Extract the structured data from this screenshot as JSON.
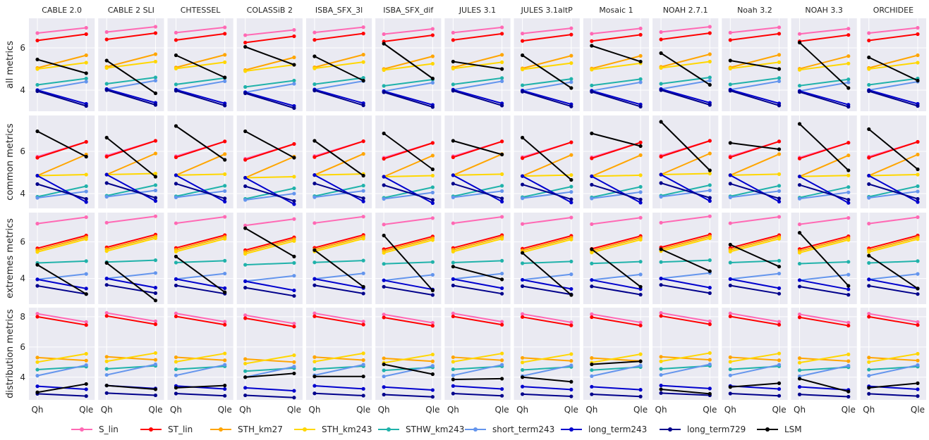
{
  "chart_data": {
    "type": "line",
    "layout": "small-multiples grid, shared y per row",
    "x": [
      "Qh",
      "Qle"
    ],
    "columns": [
      "CABLE 2.0",
      "CABLE 2 SLI",
      "CHTESSEL",
      "COLASSiB 2",
      "ISBA_SFX_3l",
      "ISBA_SFX_dif",
      "JULES 3.1",
      "JULES 3.1altP",
      "Mosaic 1",
      "NOAH 2.7.1",
      "Noah 3.2",
      "NOAH 3.3",
      "ORCHIDEE"
    ],
    "rows": [
      {
        "label": "all metrics",
        "ylim": [
          3.0,
          7.4
        ],
        "yticks": [
          4,
          6
        ]
      },
      {
        "label": "common metrics",
        "ylim": [
          3.3,
          7.7
        ],
        "yticks": [
          4,
          6
        ]
      },
      {
        "label": "extremes metrics",
        "ylim": [
          2.6,
          7.6
        ],
        "yticks": [
          4,
          6
        ]
      },
      {
        "label": "distribution metrics",
        "ylim": [
          2.5,
          8.6
        ],
        "yticks": [
          4,
          6,
          8
        ]
      }
    ],
    "grid": true,
    "legend_position": "bottom",
    "series": [
      {
        "name": "S_lin",
        "color": "#ff69b4",
        "benchmark": [
          [
            6.7,
            6.95
          ],
          [
            5.75,
            6.45
          ],
          [
            7.0,
            7.35
          ],
          [
            8.2,
            7.65
          ]
        ]
      },
      {
        "name": "ST_lin",
        "color": "#ff0000",
        "benchmark": [
          [
            6.35,
            6.65
          ],
          [
            5.7,
            6.45
          ],
          [
            5.65,
            6.35
          ],
          [
            8.0,
            7.45
          ]
        ]
      },
      {
        "name": "STH_km27",
        "color": "#ffa500",
        "benchmark": [
          [
            5.05,
            5.65
          ],
          [
            4.85,
            5.85
          ],
          [
            5.55,
            6.25
          ],
          [
            5.3,
            5.1
          ]
        ]
      },
      {
        "name": "STH_km243",
        "color": "#ffd700",
        "benchmark": [
          [
            5.0,
            5.3
          ],
          [
            4.85,
            4.9
          ],
          [
            5.45,
            6.15
          ],
          [
            5.0,
            5.55
          ]
        ]
      },
      {
        "name": "STHW_km243",
        "color": "#20b2aa",
        "benchmark": [
          [
            4.25,
            4.55
          ],
          [
            3.85,
            4.35
          ],
          [
            4.85,
            4.95
          ],
          [
            4.5,
            4.7
          ]
        ]
      },
      {
        "name": "short_term243",
        "color": "#6495ed",
        "benchmark": [
          [
            4.0,
            4.4
          ],
          [
            3.8,
            4.1
          ],
          [
            3.95,
            4.25
          ],
          [
            4.1,
            4.8
          ]
        ]
      },
      {
        "name": "long_term243",
        "color": "#0000cd",
        "benchmark": [
          [
            4.0,
            3.35
          ],
          [
            4.85,
            3.6
          ],
          [
            3.95,
            3.45
          ],
          [
            3.4,
            3.2
          ]
        ]
      },
      {
        "name": "long_term729",
        "color": "#00008b",
        "benchmark": [
          [
            3.95,
            3.25
          ],
          [
            4.45,
            3.75
          ],
          [
            3.6,
            3.15
          ],
          [
            2.9,
            2.75
          ]
        ]
      }
    ],
    "LSM": {
      "name": "LSM",
      "color": "#000000",
      "values": [
        [
          [
            5.45,
            4.8
          ],
          [
            6.95,
            5.75
          ],
          [
            4.75,
            3.15
          ],
          [
            3.0,
            3.55
          ]
        ],
        [
          [
            5.4,
            3.85
          ],
          [
            6.65,
            4.8
          ],
          [
            4.85,
            2.8
          ],
          [
            3.45,
            3.2
          ]
        ],
        [
          [
            5.65,
            4.6
          ],
          [
            7.2,
            5.6
          ],
          [
            5.2,
            3.25
          ],
          [
            3.3,
            3.45
          ]
        ],
        [
          [
            6.05,
            5.2
          ],
          [
            6.95,
            5.7
          ],
          [
            6.75,
            5.2
          ],
          [
            4.0,
            4.25
          ]
        ],
        [
          [
            5.6,
            4.45
          ],
          [
            6.5,
            4.85
          ],
          [
            5.55,
            3.55
          ],
          [
            4.05,
            4.05
          ]
        ],
        [
          [
            6.2,
            4.55
          ],
          [
            6.85,
            5.15
          ],
          [
            6.35,
            3.35
          ],
          [
            4.85,
            4.2
          ]
        ],
        [
          [
            5.35,
            5.0
          ],
          [
            6.5,
            5.85
          ],
          [
            4.65,
            3.95
          ],
          [
            3.85,
            3.9
          ]
        ],
        [
          [
            5.65,
            4.1
          ],
          [
            6.65,
            4.65
          ],
          [
            5.4,
            3.1
          ],
          [
            4.0,
            3.7
          ]
        ],
        [
          [
            6.1,
            5.35
          ],
          [
            6.85,
            6.25
          ],
          [
            5.6,
            3.55
          ],
          [
            4.85,
            5.05
          ]
        ],
        [
          [
            5.75,
            4.25
          ],
          [
            7.4,
            5.1
          ],
          [
            5.6,
            4.4
          ],
          [
            3.2,
            2.9
          ]
        ],
        [
          [
            5.4,
            5.0
          ],
          [
            6.4,
            6.1
          ],
          [
            5.85,
            4.65
          ],
          [
            3.35,
            3.6
          ]
        ],
        [
          [
            6.25,
            4.1
          ],
          [
            7.3,
            5.1
          ],
          [
            6.5,
            3.6
          ],
          [
            3.9,
            3.05
          ]
        ],
        [
          [
            5.55,
            4.45
          ],
          [
            7.05,
            5.15
          ],
          [
            5.25,
            3.45
          ],
          [
            3.3,
            3.6
          ]
        ]
      ]
    },
    "column_offsets": [
      0,
      0.05,
      0.02,
      -0.1,
      0.03,
      -0.05,
      0.02,
      -0.02,
      -0.03,
      0.05,
      0.02,
      -0.04,
      0.0
    ]
  }
}
